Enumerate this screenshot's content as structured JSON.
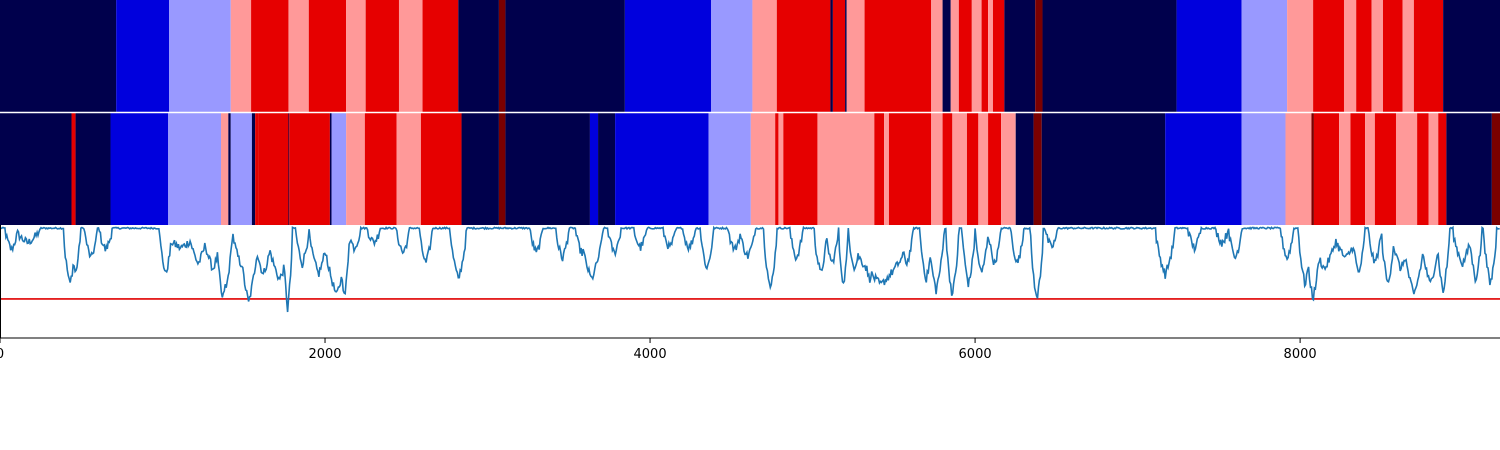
{
  "chart_data": {
    "type": "heatmap",
    "title": "",
    "xlabel": "",
    "ylabel": "",
    "xlim": [
      0,
      9230
    ],
    "x_ticks": [
      {
        "value": 0,
        "label": "0"
      },
      {
        "value": 2000,
        "label": "2000"
      },
      {
        "value": 4000,
        "label": "4000"
      },
      {
        "value": 6000,
        "label": "6000"
      },
      {
        "value": 8000,
        "label": "8000"
      }
    ],
    "state_colors": {
      "0": "#00004c",
      "1": "#0000dd",
      "2": "#9999ff",
      "3": "#ff9999",
      "4": "#e60000",
      "5": "#7a0000"
    },
    "tracks": [
      {
        "segments": [
          [
            0,
            715,
            0
          ],
          [
            715,
            1040,
            1
          ],
          [
            1040,
            1420,
            2
          ],
          [
            1420,
            1545,
            3
          ],
          [
            1545,
            1775,
            4
          ],
          [
            1775,
            1900,
            3
          ],
          [
            1900,
            2130,
            4
          ],
          [
            2130,
            2250,
            3
          ],
          [
            2250,
            2455,
            4
          ],
          [
            2455,
            2600,
            3
          ],
          [
            2600,
            2820,
            4
          ],
          [
            2820,
            3070,
            0
          ],
          [
            3070,
            3110,
            5
          ],
          [
            3110,
            3845,
            0
          ],
          [
            3845,
            4375,
            1
          ],
          [
            4375,
            4630,
            2
          ],
          [
            4630,
            4780,
            3
          ],
          [
            4780,
            5110,
            4
          ],
          [
            5110,
            5125,
            0
          ],
          [
            5125,
            5200,
            4
          ],
          [
            5200,
            5210,
            0
          ],
          [
            5210,
            5320,
            3
          ],
          [
            5320,
            5730,
            4
          ],
          [
            5730,
            5800,
            3
          ],
          [
            5800,
            5850,
            0
          ],
          [
            5850,
            5900,
            3
          ],
          [
            5900,
            5980,
            4
          ],
          [
            5980,
            6040,
            3
          ],
          [
            6040,
            6080,
            4
          ],
          [
            6080,
            6110,
            3
          ],
          [
            6110,
            6180,
            4
          ],
          [
            6180,
            6370,
            0
          ],
          [
            6370,
            6415,
            5
          ],
          [
            6415,
            7240,
            0
          ],
          [
            7240,
            7640,
            1
          ],
          [
            7640,
            7920,
            2
          ],
          [
            7920,
            8080,
            3
          ],
          [
            8080,
            8270,
            4
          ],
          [
            8270,
            8345,
            3
          ],
          [
            8345,
            8440,
            4
          ],
          [
            8440,
            8510,
            3
          ],
          [
            8510,
            8630,
            4
          ],
          [
            8630,
            8700,
            3
          ],
          [
            8700,
            8880,
            4
          ],
          [
            8880,
            9230,
            0
          ]
        ]
      },
      {
        "segments": [
          [
            0,
            440,
            0
          ],
          [
            440,
            465,
            4
          ],
          [
            465,
            680,
            0
          ],
          [
            680,
            1035,
            1
          ],
          [
            1035,
            1360,
            2
          ],
          [
            1360,
            1405,
            3
          ],
          [
            1405,
            1420,
            0
          ],
          [
            1420,
            1550,
            2
          ],
          [
            1550,
            1570,
            0
          ],
          [
            1570,
            1590,
            4
          ],
          [
            1590,
            1775,
            4
          ],
          [
            1775,
            1780,
            0
          ],
          [
            1780,
            2030,
            4
          ],
          [
            2030,
            2040,
            0
          ],
          [
            2040,
            2130,
            2
          ],
          [
            2130,
            2245,
            3
          ],
          [
            2245,
            2440,
            4
          ],
          [
            2440,
            2590,
            3
          ],
          [
            2590,
            2840,
            4
          ],
          [
            2840,
            3070,
            0
          ],
          [
            3070,
            3110,
            5
          ],
          [
            3110,
            3630,
            0
          ],
          [
            3630,
            3680,
            1
          ],
          [
            3680,
            3785,
            0
          ],
          [
            3785,
            4360,
            1
          ],
          [
            4360,
            4620,
            2
          ],
          [
            4620,
            4770,
            3
          ],
          [
            4770,
            4790,
            4
          ],
          [
            4790,
            4820,
            3
          ],
          [
            4820,
            5030,
            4
          ],
          [
            5030,
            5380,
            3
          ],
          [
            5380,
            5440,
            4
          ],
          [
            5440,
            5470,
            3
          ],
          [
            5470,
            5730,
            4
          ],
          [
            5730,
            5800,
            3
          ],
          [
            5800,
            5860,
            4
          ],
          [
            5860,
            5950,
            3
          ],
          [
            5950,
            6020,
            4
          ],
          [
            6020,
            6080,
            3
          ],
          [
            6080,
            6160,
            4
          ],
          [
            6160,
            6250,
            3
          ],
          [
            6250,
            6360,
            0
          ],
          [
            6360,
            6410,
            5
          ],
          [
            6410,
            7170,
            0
          ],
          [
            7170,
            7640,
            1
          ],
          [
            7640,
            7910,
            2
          ],
          [
            7910,
            8070,
            3
          ],
          [
            8070,
            8085,
            5
          ],
          [
            8085,
            8240,
            4
          ],
          [
            8240,
            8310,
            3
          ],
          [
            8310,
            8400,
            4
          ],
          [
            8400,
            8460,
            3
          ],
          [
            8460,
            8590,
            4
          ],
          [
            8590,
            8720,
            3
          ],
          [
            8720,
            8790,
            4
          ],
          [
            8790,
            8850,
            3
          ],
          [
            8850,
            8900,
            4
          ],
          [
            8900,
            9180,
            0
          ],
          [
            9180,
            9230,
            5
          ]
        ]
      }
    ],
    "line": {
      "color": "#1f77b4",
      "ylim": [
        -1.05,
        0.02
      ],
      "threshold": {
        "y": -0.68,
        "color": "#e00000"
      },
      "baseline": -0.01,
      "dips": [
        [
          70,
          40,
          -0.22
        ],
        [
          170,
          80,
          -0.15
        ],
        [
          430,
          40,
          -0.55
        ],
        [
          465,
          30,
          -0.45
        ],
        [
          560,
          40,
          -0.3
        ],
        [
          650,
          40,
          -0.22
        ],
        [
          1020,
          40,
          -0.45
        ],
        [
          1110,
          120,
          -0.2
        ],
        [
          1220,
          60,
          -0.35
        ],
        [
          1310,
          60,
          -0.4
        ],
        [
          1370,
          40,
          -0.7
        ],
        [
          1390,
          40,
          -0.6
        ],
        [
          1480,
          50,
          -0.35
        ],
        [
          1530,
          60,
          -0.72
        ],
        [
          1620,
          60,
          -0.45
        ],
        [
          1720,
          80,
          -0.5
        ],
        [
          1770,
          30,
          -0.78
        ],
        [
          1860,
          40,
          -0.35
        ],
        [
          1960,
          60,
          -0.45
        ],
        [
          2070,
          80,
          -0.65
        ],
        [
          2120,
          30,
          -0.68
        ],
        [
          2180,
          40,
          -0.2
        ],
        [
          2300,
          40,
          -0.15
        ],
        [
          2480,
          40,
          -0.25
        ],
        [
          2620,
          40,
          -0.35
        ],
        [
          2820,
          50,
          -0.5
        ],
        [
          3300,
          40,
          -0.25
        ],
        [
          3460,
          40,
          -0.3
        ],
        [
          3580,
          40,
          -0.25
        ],
        [
          3640,
          70,
          -0.5
        ],
        [
          3780,
          40,
          -0.25
        ],
        [
          3940,
          40,
          -0.2
        ],
        [
          4120,
          40,
          -0.2
        ],
        [
          4240,
          40,
          -0.2
        ],
        [
          4350,
          40,
          -0.4
        ],
        [
          4520,
          40,
          -0.22
        ],
        [
          4600,
          50,
          -0.28
        ],
        [
          4740,
          40,
          -0.6
        ],
        [
          4900,
          40,
          -0.3
        ],
        [
          5050,
          40,
          -0.45
        ],
        [
          5120,
          40,
          -0.35
        ],
        [
          5190,
          30,
          -0.55
        ],
        [
          5260,
          40,
          -0.4
        ],
        [
          5350,
          50,
          -0.5
        ],
        [
          5420,
          200,
          -0.55
        ],
        [
          5580,
          40,
          -0.35
        ],
        [
          5700,
          40,
          -0.5
        ],
        [
          5760,
          50,
          -0.6
        ],
        [
          5860,
          40,
          -0.65
        ],
        [
          5960,
          40,
          -0.55
        ],
        [
          6040,
          40,
          -0.45
        ],
        [
          6120,
          40,
          -0.35
        ],
        [
          6260,
          40,
          -0.35
        ],
        [
          6380,
          40,
          -0.7
        ],
        [
          6470,
          40,
          -0.2
        ],
        [
          7170,
          60,
          -0.45
        ],
        [
          7350,
          40,
          -0.2
        ],
        [
          7520,
          40,
          -0.15
        ],
        [
          7600,
          40,
          -0.3
        ],
        [
          7920,
          40,
          -0.3
        ],
        [
          8030,
          40,
          -0.55
        ],
        [
          8080,
          50,
          -0.68
        ],
        [
          8150,
          80,
          -0.4
        ],
        [
          8280,
          80,
          -0.3
        ],
        [
          8360,
          40,
          -0.45
        ],
        [
          8460,
          40,
          -0.35
        ],
        [
          8540,
          40,
          -0.55
        ],
        [
          8620,
          60,
          -0.4
        ],
        [
          8700,
          70,
          -0.65
        ],
        [
          8800,
          60,
          -0.55
        ],
        [
          8880,
          40,
          -0.62
        ],
        [
          9000,
          60,
          -0.35
        ],
        [
          9080,
          40,
          -0.5
        ],
        [
          9170,
          40,
          -0.55
        ]
      ]
    }
  }
}
